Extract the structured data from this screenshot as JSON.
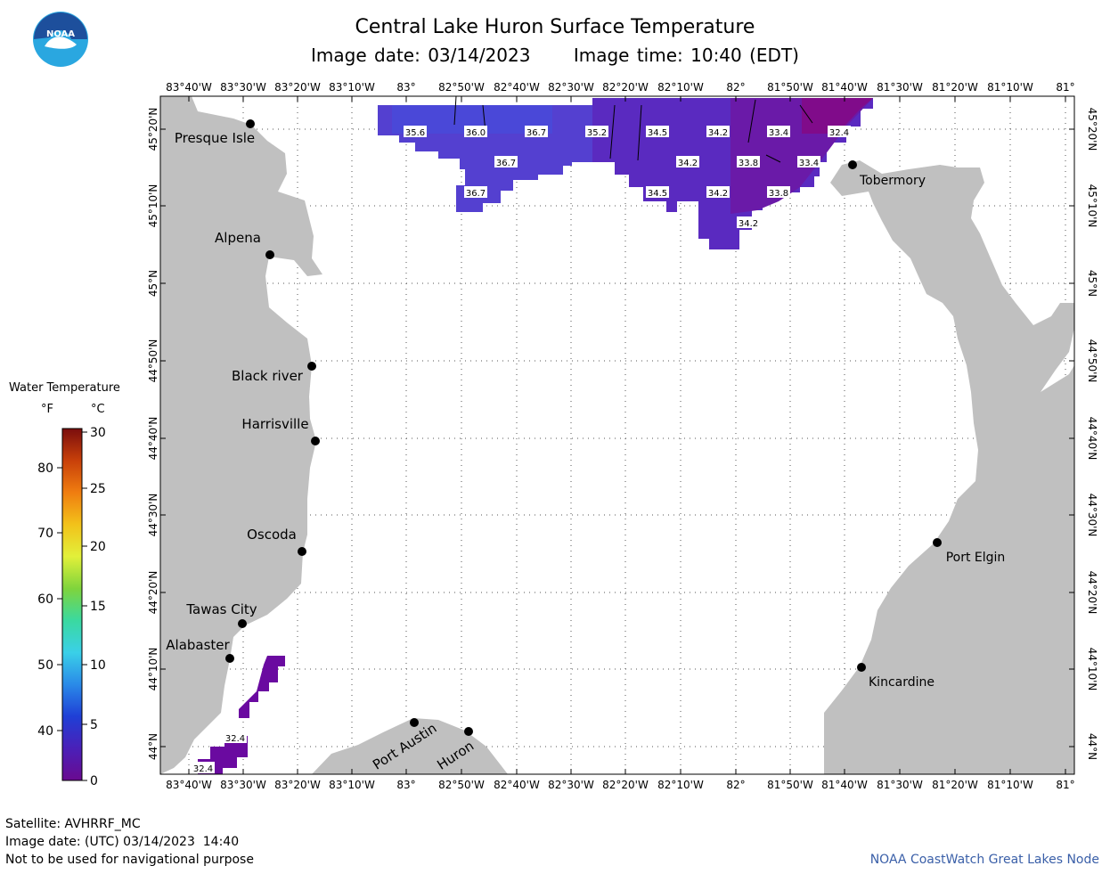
{
  "header": {
    "title": "Central Lake Huron Surface Temperature",
    "image_date_label": "Image date: 03/14/2023",
    "image_time_label": "Image time: 10:40 (EDT)"
  },
  "logo": {
    "text": "NOAA",
    "icon": "noaa-logo-icon",
    "colors": [
      "#1d4f9c",
      "#2aa7e0",
      "#ffffff"
    ]
  },
  "map": {
    "lon_labels": [
      "83°40'W",
      "83°30'W",
      "83°20'W",
      "83°10'W",
      "83°",
      "82°50'W",
      "82°40'W",
      "82°30'W",
      "82°20'W",
      "82°10'W",
      "82°",
      "81°50'W",
      "81°40'W",
      "81°30'W",
      "81°20'W",
      "81°10'W",
      "81°"
    ],
    "lat_labels": [
      "45°20'N",
      "45°10'N",
      "45°N",
      "44°50'N",
      "44°40'N",
      "44°30'N",
      "44°20'N",
      "44°10'N",
      "44°N"
    ],
    "land_color": "#c0c0c0",
    "water_color": "#ffffff",
    "cities": [
      {
        "name": "Presque Isle"
      },
      {
        "name": "Alpena"
      },
      {
        "name": "Black river"
      },
      {
        "name": "Harrisville"
      },
      {
        "name": "Oscoda"
      },
      {
        "name": "Tawas City"
      },
      {
        "name": "Alabaster"
      },
      {
        "name": "Port Austin"
      },
      {
        "name": "Huron"
      },
      {
        "name": "Tobermory"
      },
      {
        "name": "Port Elgin"
      },
      {
        "name": "Kincardine"
      }
    ],
    "temperature_labels": [
      "35.6",
      "36.0",
      "36.7",
      "35.2",
      "34.5",
      "34.2",
      "33.4",
      "32.4",
      "36.7",
      "34.2",
      "33.8",
      "33.4",
      "36.7",
      "34.5",
      "34.2",
      "33.8",
      "34.2",
      "32.4",
      "32.4"
    ]
  },
  "legend": {
    "title": "Water Temperature",
    "unit_f": "°F",
    "unit_c": "°C",
    "f_ticks": [
      "80",
      "70",
      "60",
      "50",
      "40"
    ],
    "c_ticks": [
      "30",
      "25",
      "20",
      "15",
      "10",
      "5",
      "0"
    ],
    "colors": [
      "#7a0d0d",
      "#c8400a",
      "#f07d10",
      "#f2c21a",
      "#e2f03a",
      "#7fd43c",
      "#3ad9a0",
      "#3ad0e8",
      "#2a8ae8",
      "#1f3fd6",
      "#4a20b8",
      "#6a0a90"
    ]
  },
  "footer": {
    "satellite": "Satellite: AVHRRF_MC",
    "utc_date": "Image date: (UTC) 03/14/2023  14:40",
    "disclaimer": "Not to be used for navigational purpose",
    "credit": "NOAA CoastWatch Great Lakes Node"
  }
}
